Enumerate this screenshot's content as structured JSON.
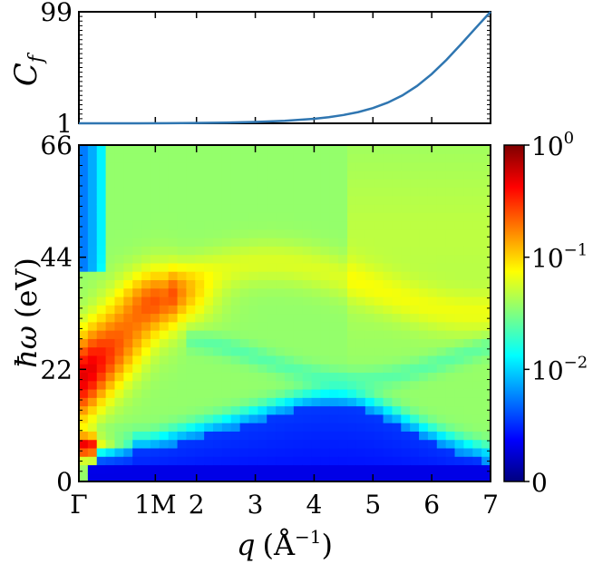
{
  "chart_data": [
    {
      "type": "line",
      "ylabel_main": "C",
      "ylabel_sub": "f",
      "yticks": [
        {
          "value": 1,
          "label": "1"
        },
        {
          "value": 99,
          "label": "99"
        }
      ],
      "ylim": [
        1,
        99
      ],
      "xlim": [
        0,
        7
      ],
      "series": [
        {
          "color": "#2f76b1",
          "x": [
            0,
            0.5,
            1,
            1.5,
            2,
            2.5,
            3,
            3.5,
            4,
            4.25,
            4.5,
            4.75,
            5,
            5.25,
            5.5,
            5.75,
            6,
            6.25,
            6.5,
            6.75,
            7
          ],
          "y": [
            1,
            1,
            1,
            1.1,
            1.3,
            1.6,
            2.2,
            3.2,
            5.0,
            6.4,
            8.3,
            10.9,
            14.4,
            19.2,
            25.5,
            33.8,
            44.3,
            56.8,
            70.6,
            84.9,
            99
          ]
        }
      ]
    },
    {
      "type": "heatmap",
      "ylabel_main": "ħω",
      "ylabel_unit": "(eV)",
      "xlabel_main": "q",
      "xlabel_unit": "(Å",
      "xlabel_sup": "−1",
      "xlabel_close": ")",
      "xlim": [
        0,
        7
      ],
      "ylim": [
        0,
        66
      ],
      "xticks": [
        {
          "value": 0,
          "label": "Γ"
        },
        {
          "value": 1.3,
          "label": "1M"
        },
        {
          "value": 2,
          "label": "2"
        },
        {
          "value": 3,
          "label": "3"
        },
        {
          "value": 4,
          "label": "4"
        },
        {
          "value": 5,
          "label": "5"
        },
        {
          "value": 6,
          "label": "6"
        },
        {
          "value": 7,
          "label": "7"
        }
      ],
      "yticks": [
        {
          "value": 0,
          "label": "0"
        },
        {
          "value": 22,
          "label": "22"
        },
        {
          "value": 44,
          "label": "44"
        },
        {
          "value": 66,
          "label": "66"
        }
      ],
      "colormap": "jet",
      "scale": "log",
      "colorbar": {
        "ticks": [
          {
            "frac": 1.0,
            "base": "10",
            "exp": "0"
          },
          {
            "frac": 0.6667,
            "base": "10",
            "exp": "−1"
          },
          {
            "frac": 0.3333,
            "base": "10",
            "exp": "−2"
          },
          {
            "frac": 0.0,
            "base": "0",
            "exp": ""
          }
        ]
      }
    }
  ]
}
